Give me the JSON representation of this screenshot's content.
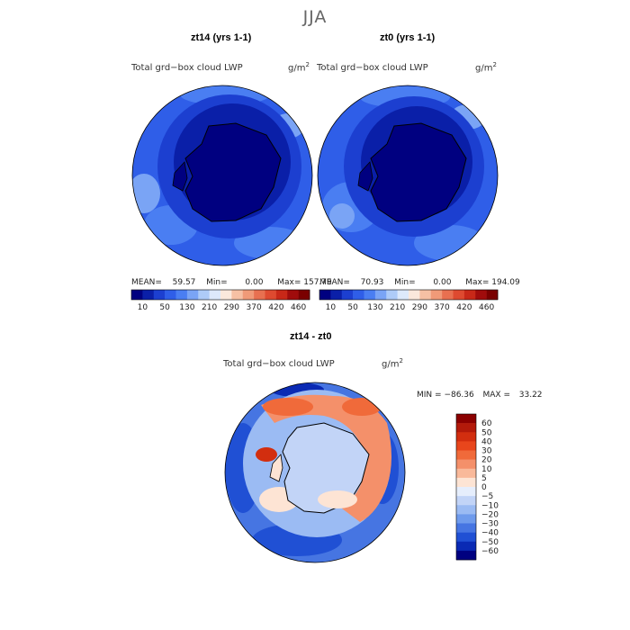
{
  "title": "JJA",
  "panels": [
    {
      "title": "zt14 (yrs 1-1)",
      "var_label": "Total grd−box cloud LWP",
      "unit_base": "g/m",
      "unit_exp": "2",
      "stats": {
        "mean_label": "MEAN=",
        "mean": "59.57",
        "min_label": "Min=",
        "min": "0.00",
        "max_label": "Max=",
        "max": "157.79"
      }
    },
    {
      "title": "zt0 (yrs 1-1)",
      "var_label": "Total grd−box cloud LWP",
      "unit_base": "g/m",
      "unit_exp": "2",
      "stats": {
        "mean_label": "MEAN=",
        "mean": "70.93",
        "min_label": "Min=",
        "min": "0.00",
        "max_label": "Max=",
        "max": "194.09"
      }
    }
  ],
  "diff_panel": {
    "title": "zt14 - zt0",
    "var_label": "Total grd−box cloud LWP",
    "unit_base": "g/m",
    "unit_exp": "2",
    "stats": {
      "min_label": "MIN =",
      "min": "−86.36",
      "max_label": "MAX =",
      "max": "33.22"
    }
  },
  "chart_data": [
    {
      "type": "heatmap",
      "projection": "south-polar-stereographic",
      "title": "zt14 (yrs 1-1)",
      "variable": "Total grd-box cloud LWP",
      "units": "g/m^2",
      "mean": 59.57,
      "min": 0.0,
      "max": 157.79,
      "colorbar_ticks": [
        10,
        50,
        130,
        210,
        290,
        370,
        420,
        460
      ],
      "colorbar_colors": [
        "#000080",
        "#0a1fa8",
        "#1c3fd0",
        "#2f5ee8",
        "#4a7ef2",
        "#7aa4f5",
        "#aecbf8",
        "#dde9fb",
        "#fbe8dc",
        "#f6c0a4",
        "#f09a78",
        "#e87050",
        "#de4a30",
        "#c82818",
        "#a00c0c",
        "#7a0000"
      ],
      "pattern": "darkest blue (~10-50) over Antarctic interior, medium blue (~130-210) in surrounding ocean"
    },
    {
      "type": "heatmap",
      "projection": "south-polar-stereographic",
      "title": "zt0 (yrs 1-1)",
      "variable": "Total grd-box cloud LWP",
      "units": "g/m^2",
      "mean": 70.93,
      "min": 0.0,
      "max": 194.09,
      "colorbar_ticks": [
        10,
        50,
        130,
        210,
        290,
        370,
        420,
        460
      ],
      "colorbar_colors": [
        "#000080",
        "#0a1fa8",
        "#1c3fd0",
        "#2f5ee8",
        "#4a7ef2",
        "#7aa4f5",
        "#aecbf8",
        "#dde9fb",
        "#fbe8dc",
        "#f6c0a4",
        "#f09a78",
        "#e87050",
        "#de4a30",
        "#c82818",
        "#a00c0c",
        "#7a0000"
      ],
      "pattern": "darkest blue over Antarctic interior, medium to light blue ocean with lighter patches"
    },
    {
      "type": "heatmap",
      "projection": "south-polar-stereographic",
      "title": "zt14 - zt0",
      "variable": "Total grd-box cloud LWP",
      "units": "g/m^2",
      "min": -86.36,
      "max": 33.22,
      "colorbar_labels": [
        "60",
        "50",
        "40",
        "30",
        "20",
        "10",
        "5",
        "0",
        "−5",
        "−10",
        "−20",
        "−30",
        "−40",
        "−50",
        "−60"
      ],
      "colorbar_colors": [
        "#8b0000",
        "#b31a0a",
        "#d22e0f",
        "#e8461c",
        "#f06a3a",
        "#f4906a",
        "#f9b99a",
        "#fde4d4",
        "#e6eefc",
        "#c2d4f7",
        "#9bbbf3",
        "#6f9bec",
        "#4675e2",
        "#2050d4",
        "#0a2ab4",
        "#000080"
      ],
      "pattern": "light blue/near-zero over Antarctica, red-orange band around 60S, blue patches in outer ocean"
    }
  ]
}
